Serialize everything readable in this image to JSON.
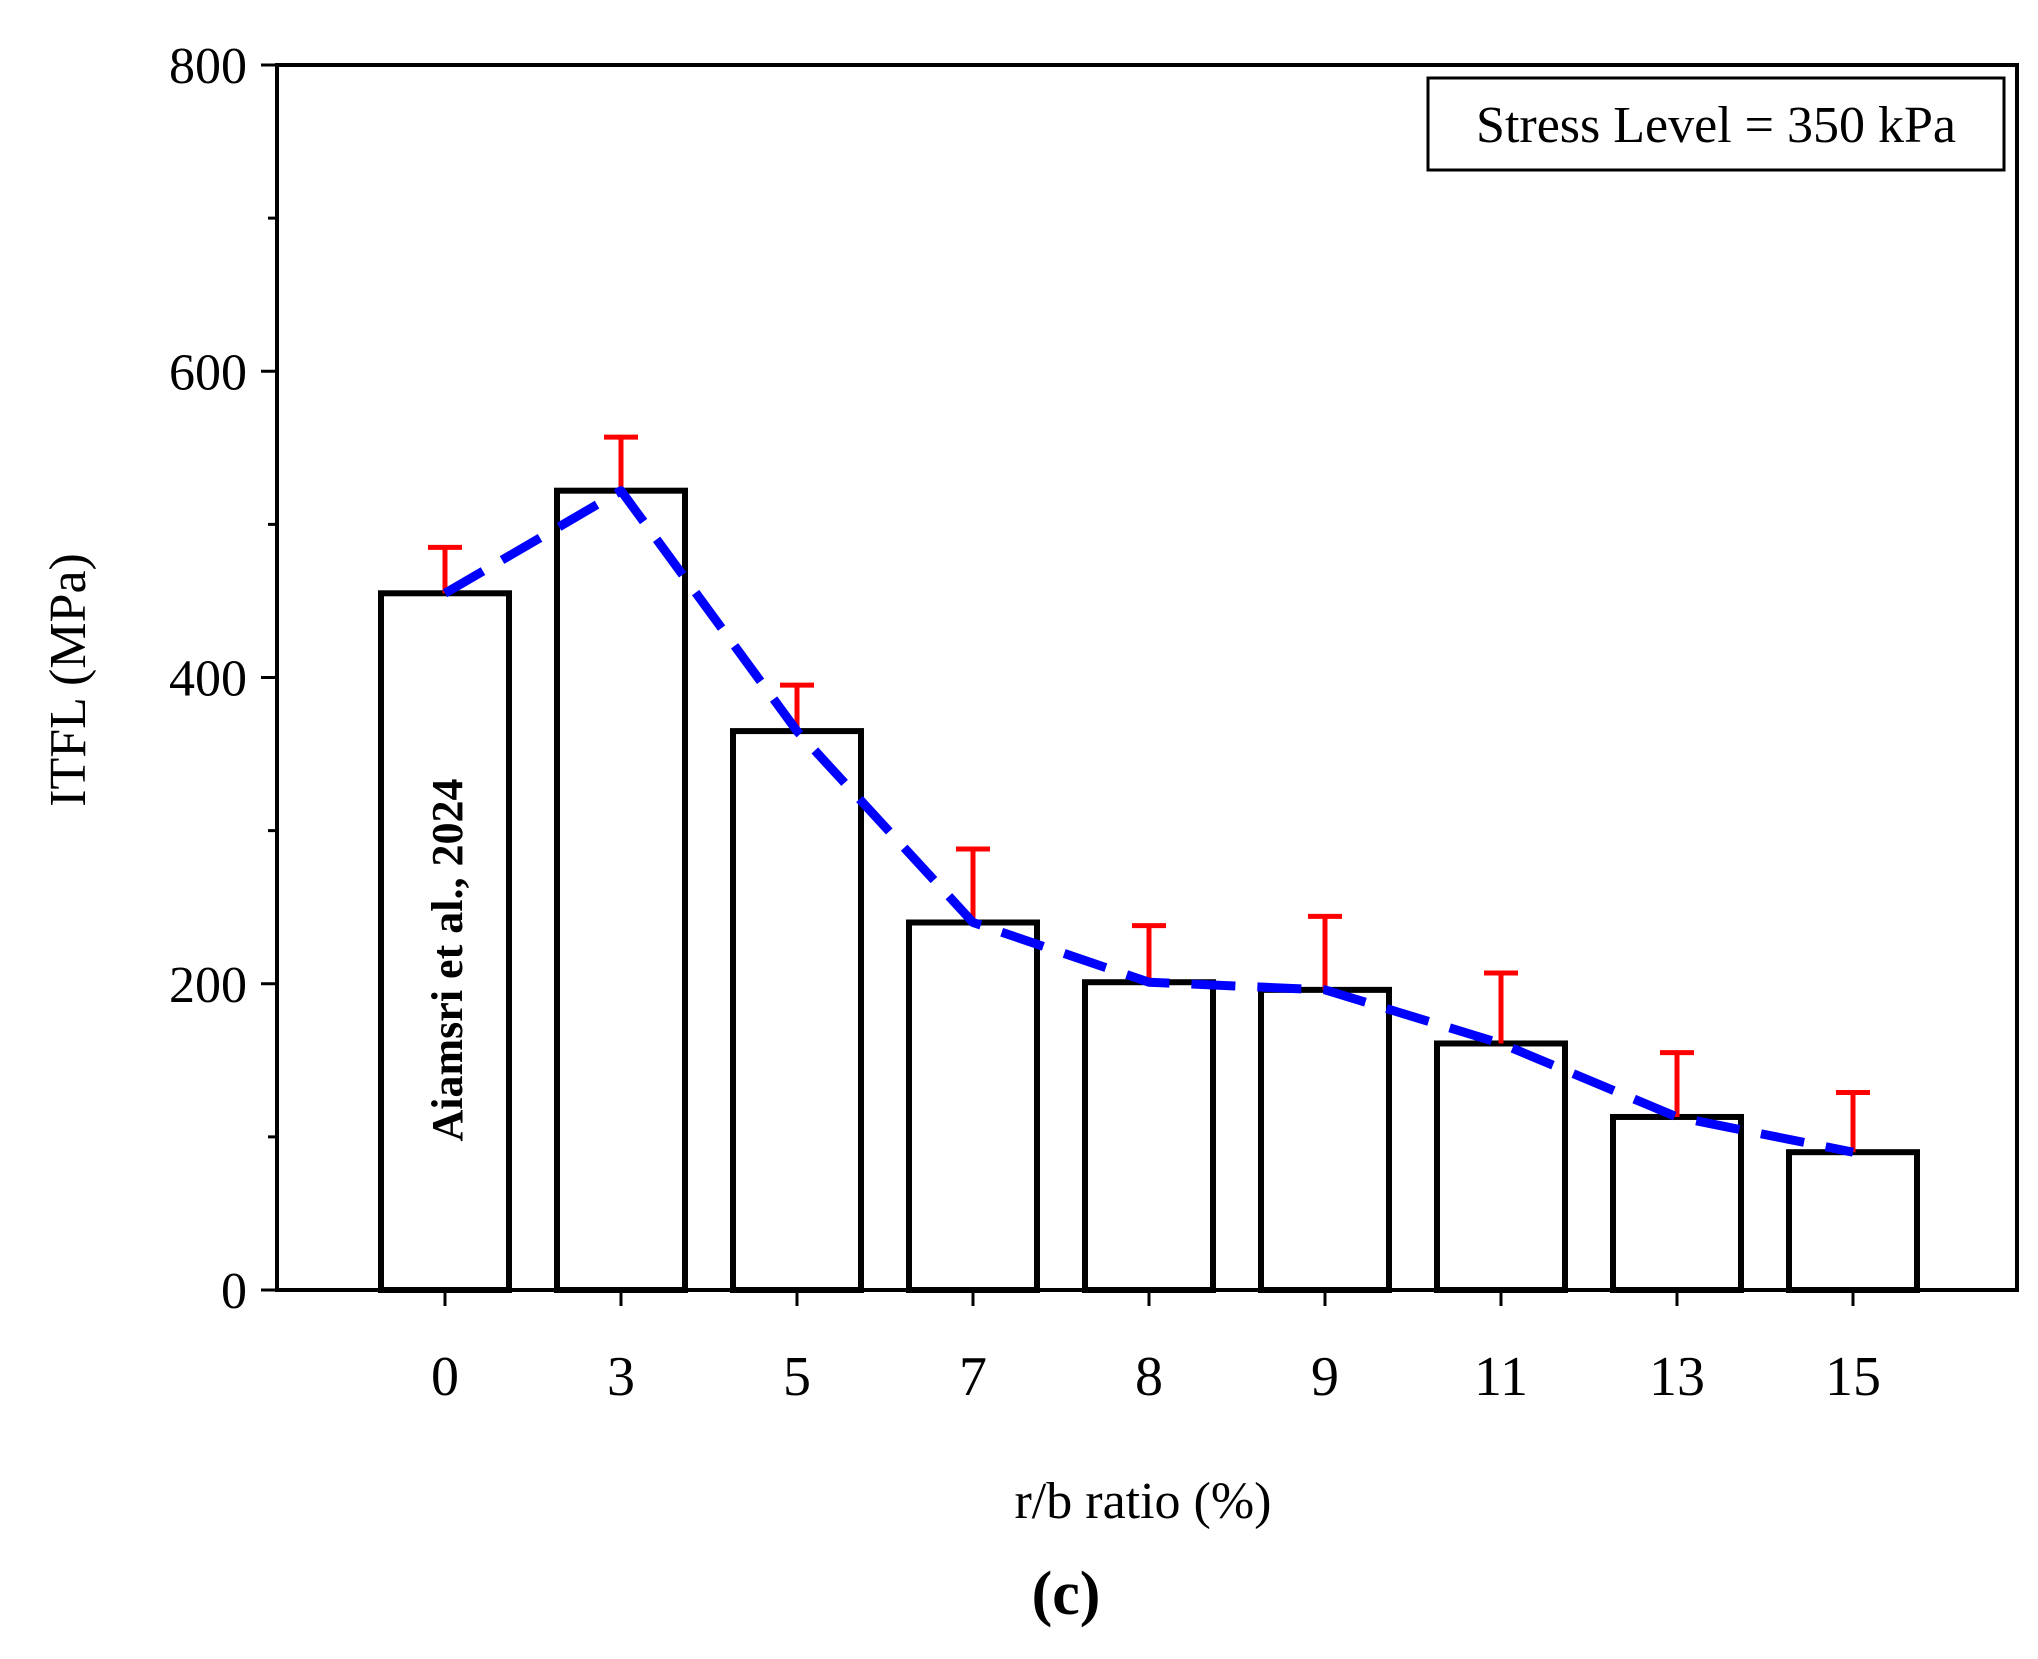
{
  "chart_data": {
    "type": "bar",
    "title": "",
    "xlabel": "r/b ratio (%)",
    "ylabel": "ITFL (MPa)",
    "categories": [
      "0",
      "3",
      "5",
      "7",
      "8",
      "9",
      "11",
      "13",
      "15"
    ],
    "series": [
      {
        "name": "ITFL",
        "values": [
          455,
          522,
          365,
          240,
          201,
          196,
          161,
          113,
          90
        ],
        "error_upper": [
          30,
          35,
          30,
          48,
          37,
          48,
          46,
          42,
          39
        ]
      }
    ],
    "trend_line": {
      "style": "dashed",
      "color": "#0000ff",
      "values": [
        455,
        522,
        365,
        240,
        201,
        196,
        161,
        113,
        90
      ]
    },
    "ylim": [
      0,
      800
    ],
    "yticks": [
      0,
      200,
      400,
      600,
      800
    ],
    "yminor_ticks": [
      100,
      300,
      500,
      700
    ],
    "grid": false,
    "legend_box": "Stress Level = 350 kPa",
    "annotation": "Aiamsri et al., 2024",
    "panel_label": "(c)",
    "colors": {
      "bar_fill": "#ffffff",
      "bar_stroke": "#000000",
      "error_bar": "#ff0000",
      "trend": "#0000ff",
      "axis": "#000000"
    }
  }
}
